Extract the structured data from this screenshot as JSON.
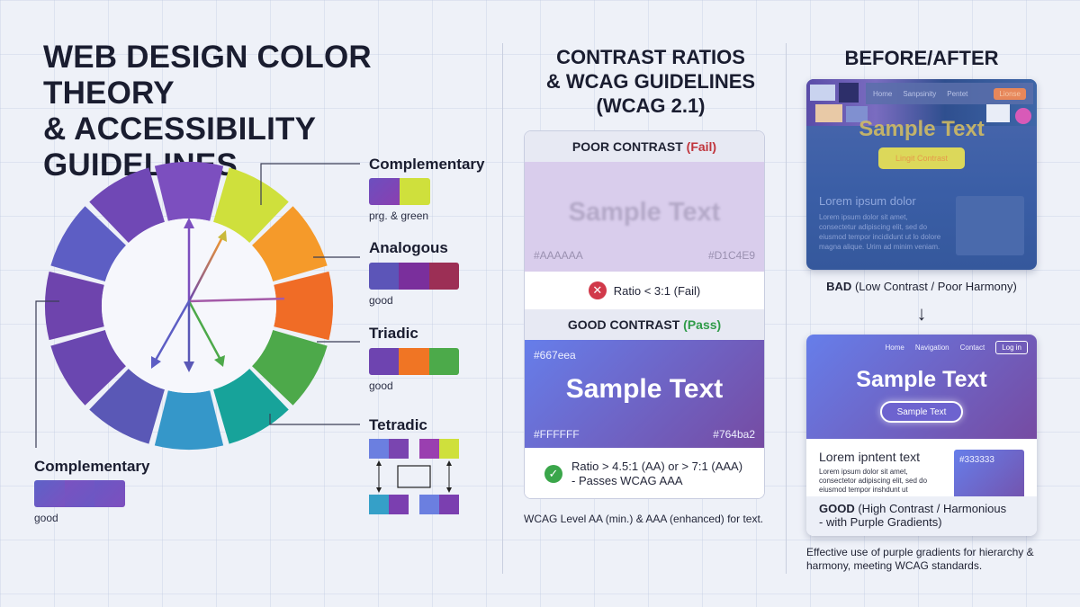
{
  "main_title": {
    "line1": "WEB DESIGN COLOR THEORY",
    "line2": "& ACCESSIBILITY GUIDELINES"
  },
  "harmonies": {
    "complementary": {
      "title": "Complementary",
      "note": "prg. & green",
      "colors": [
        "#7c4dc4",
        "#cfe03c"
      ]
    },
    "analogous": {
      "title": "Analogous",
      "note": "good",
      "colors": [
        "#5c55b8",
        "#7a2f9c",
        "#9c2f55"
      ]
    },
    "triadic": {
      "title": "Triadic",
      "note": "good",
      "colors": [
        "#6e44b0",
        "#f07524",
        "#4caa4a"
      ]
    },
    "tetradic": {
      "title": "Tetradic",
      "colors": [
        "#6b7fe0",
        "#7a45b0",
        "#9a3fb0",
        "#cfe03c",
        "#35a0c8",
        "#7b3fb0",
        "#6b7fe0",
        "#7b3fb0"
      ]
    },
    "bottom_complementary": {
      "title": "Complementary",
      "note": "good",
      "colors": [
        "#6a5cc4",
        "#7b58c2",
        "#6a5cc4"
      ]
    }
  },
  "wheel_colors": [
    "#7c4fbf",
    "#cfe03c",
    "#f59a2a",
    "#f06c26",
    "#4da94a",
    "#17a39a",
    "#3597c9",
    "#5a58b6",
    "#6a47b0",
    "#6e44ad",
    "#5d5ec4",
    "#7048b5"
  ],
  "contrast": {
    "title_lines": [
      "CONTRAST RATIOS",
      "& WCAG GUIDELINES",
      "(WCAG 2.1)"
    ],
    "poor": {
      "heading": "POOR CONTRAST ",
      "status": "(Fail)",
      "sample": "Sample Text",
      "fg_hex": "#AAAAAA",
      "bg_hex": "#D1C4E9",
      "ratio": "Ratio < 3:1 (Fail)",
      "icon": "x-icon"
    },
    "good": {
      "heading": "GOOD CONTRAST ",
      "status": "(Pass)",
      "sample": "Sample Text",
      "hex_top": "#667eea",
      "fg_hex": "#FFFFFF",
      "bg_hex": "#764ba2",
      "ratio_line1": "Ratio > 4.5:1 (AA) or > 7:1 (AAA)",
      "ratio_line2": "- Passes WCAG AAA",
      "icon": "check-icon"
    },
    "note": "WCAG Level AA (min.) & AAA (enhanced) for text."
  },
  "before_after": {
    "title": "BEFORE/AFTER",
    "bad": {
      "nav": [
        "Home",
        "Sanpsinity",
        "Pentet"
      ],
      "nav_button": "Lionse",
      "sample": "Sample Text",
      "button": "Lingit Contrast",
      "lorem_title": "Lorem ipsum dolor",
      "lorem_body": "Lorem ipsum dolor sit amet, consectetur adipiscing elit, sed do eiusmod tempor incididunt ut lo dolore magna alique. Urim ad minim veniam.",
      "caption_bold": "BAD",
      "caption_rest": " (Low Contrast / Poor Harmony)"
    },
    "arrow": "↓",
    "good": {
      "nav": [
        "Home",
        "Navigation",
        "Contact"
      ],
      "nav_button": "Log in",
      "sample": "Sample Text",
      "button": "Sample Text",
      "lorem_title": "Lorem ipntent text",
      "lorem_body": "Lorem ipsum dolor sit amet, consectetor adipiscing elit, sed do eiusmod tempor inshdunt ut",
      "swatch_hex": "#333333",
      "caption_bold": "GOOD",
      "caption_rest": " (High Contrast / Harmonious",
      "caption_line2": "- with Purple Gradients)"
    },
    "footer_note": "Effective use of purple gradients for hierarchy & harmony, meeting WCAG standards."
  }
}
